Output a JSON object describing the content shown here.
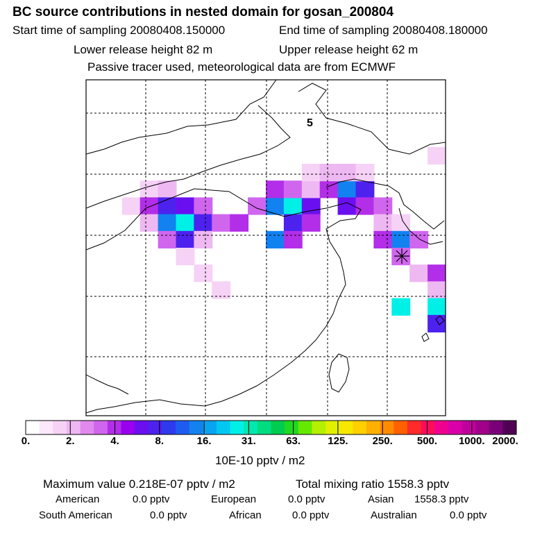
{
  "header": {
    "title": "BC  source contributions in nested domain for gosan_200804",
    "start_time": "Start time of sampling 20080408.150000",
    "end_time": "End time of sampling 20080408.180000",
    "lower_height": "Lower release height   82 m",
    "upper_height": "Upper release height   62 m",
    "tracer_note": "Passive tracer used, meteorological data are from ECMWF"
  },
  "map": {
    "panel_label": "5",
    "receptor_marker": "asterisk-receptor"
  },
  "colorbar": {
    "unit_label": "10E-10 pptv / m2",
    "tick_labels": [
      "0.",
      "2.",
      "4.",
      "8.",
      "16.",
      "31.",
      "63.",
      "125.",
      "250.",
      "500.",
      "1000.",
      "2000."
    ],
    "colors": [
      "#ffffff",
      "#fbe9fb",
      "#f6d2f6",
      "#eeb8f2",
      "#e08aee",
      "#d066ee",
      "#b32ee8",
      "#9900ee",
      "#6a10f0",
      "#4d22ee",
      "#2e3aee",
      "#1e5cf0",
      "#1182f0",
      "#08a4f0",
      "#00c8f0",
      "#00f0e8",
      "#00e8b0",
      "#00dc80",
      "#00cc50",
      "#20d820",
      "#66e800",
      "#b4f000",
      "#e0f000",
      "#f8e800",
      "#ffd000",
      "#ffb000",
      "#ff8c00",
      "#ff6000",
      "#ff2a2a",
      "#ff0d5a",
      "#f00090",
      "#d800a8",
      "#c0009c",
      "#a0008a",
      "#7a0078",
      "#500054"
    ]
  },
  "chart_data": {
    "type": "heatmap",
    "title": "BC  source contributions in nested domain for gosan_200804",
    "colorbar_levels": [
      0,
      2,
      4,
      8,
      16,
      31,
      63,
      125,
      250,
      500,
      1000,
      2000
    ],
    "colorbar_unit": "10E-10 pptv / m2",
    "grid": true,
    "plume_cells": [
      [
        6,
        3,
        1
      ],
      [
        6,
        4,
        2
      ],
      [
        7,
        2,
        1
      ],
      [
        7,
        3,
        4
      ],
      [
        7,
        4,
        8
      ],
      [
        7,
        5,
        5
      ],
      [
        7,
        6,
        3
      ],
      [
        8,
        3,
        2
      ],
      [
        8,
        4,
        16
      ],
      [
        8,
        5,
        31
      ],
      [
        8,
        6,
        8
      ],
      [
        8,
        7,
        3
      ],
      [
        9,
        4,
        3
      ],
      [
        9,
        5,
        8
      ],
      [
        9,
        6,
        2
      ],
      [
        10,
        5,
        1
      ],
      [
        8,
        8,
        4
      ],
      [
        7,
        9,
        3
      ],
      [
        7,
        10,
        16
      ],
      [
        7,
        11,
        31
      ],
      [
        7,
        12,
        6
      ],
      [
        6,
        10,
        4
      ],
      [
        6,
        11,
        3
      ],
      [
        6,
        12,
        2
      ],
      [
        8,
        11,
        8
      ],
      [
        8,
        12,
        4
      ],
      [
        9,
        10,
        16
      ],
      [
        9,
        11,
        4
      ],
      [
        6,
        13,
        4
      ],
      [
        6,
        14,
        16
      ],
      [
        6,
        15,
        8
      ],
      [
        7,
        14,
        6
      ],
      [
        7,
        15,
        4
      ],
      [
        5,
        12,
        1
      ],
      [
        5,
        13,
        2
      ],
      [
        5,
        14,
        2
      ],
      [
        5,
        15,
        1
      ],
      [
        7,
        16,
        3
      ],
      [
        8,
        16,
        2
      ],
      [
        8,
        17,
        1
      ],
      [
        9,
        16,
        4
      ],
      [
        9,
        17,
        16
      ],
      [
        9,
        18,
        3
      ],
      [
        10,
        17,
        3
      ],
      [
        11,
        18,
        2
      ],
      [
        11,
        19,
        4
      ],
      [
        12,
        19,
        2
      ],
      [
        13,
        19,
        31
      ],
      [
        14,
        19,
        8
      ],
      [
        13,
        17,
        31
      ],
      [
        4,
        19,
        1
      ],
      [
        12,
        7,
        1
      ],
      [
        11,
        6,
        1
      ]
    ],
    "receptor": "Gosan"
  },
  "summary": {
    "max_value": "Maximum value  0.218E-07 pptv / m2",
    "total_mixing": "Total mixing ratio     1558.3 pptv",
    "american_label": "American",
    "american_value": "0.0 pptv",
    "european_label": "European",
    "european_value": "0.0 pptv",
    "asian_label": "Asian",
    "asian_value": "1558.3 pptv",
    "south_american_label": "South American",
    "south_american_value": "0.0 pptv",
    "african_label": "African",
    "african_value": "0.0 pptv",
    "australian_label": "Australian",
    "australian_value": "0.0 pptv"
  }
}
